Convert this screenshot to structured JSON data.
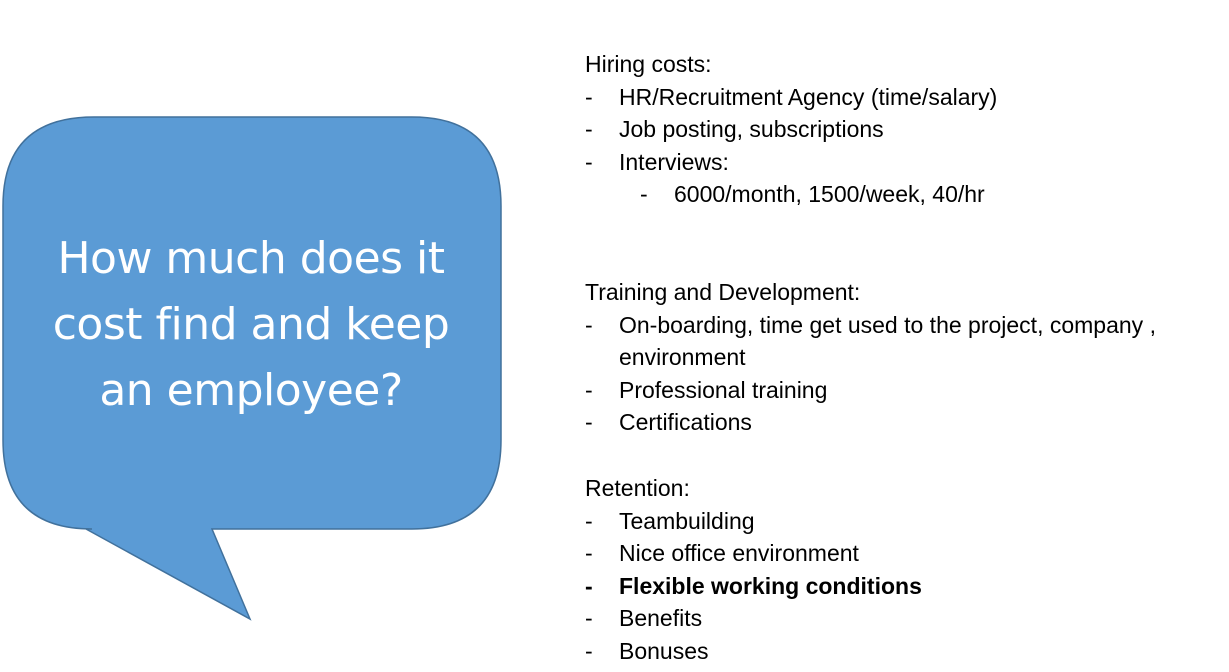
{
  "bubble": {
    "line1": "How much does it",
    "line2": "cost find and keep",
    "line3": "an employee?",
    "fill": "#5b9bd5",
    "stroke": "#41719c"
  },
  "hiring": {
    "heading": "Hiring costs:",
    "items": [
      "HR/Recruitment Agency (time/salary)",
      "Job posting, subscriptions",
      "Interviews:"
    ],
    "subitems": [
      "6000/month, 1500/week, 40/hr"
    ]
  },
  "training": {
    "heading": "Training and Development:",
    "items": [
      "On-boarding, time get used to the project, company , environment",
      "Professional training",
      "Certifications"
    ]
  },
  "retention": {
    "heading": "Retention:",
    "items": [
      "Teambuilding",
      "Nice office environment",
      "Flexible working conditions",
      "Benefits",
      "Bonuses"
    ]
  },
  "bullet": "-"
}
